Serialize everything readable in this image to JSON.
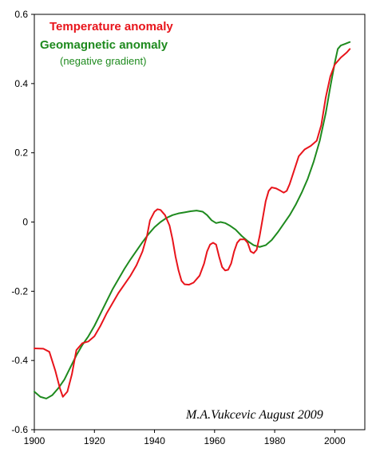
{
  "chart_data": {
    "type": "line",
    "title": "",
    "xlabel": "",
    "ylabel": "",
    "xlim": [
      1900,
      2010
    ],
    "ylim": [
      -0.6,
      0.6
    ],
    "grid": false,
    "legend_position": "top-left",
    "x_ticks": [
      "1900",
      "1920",
      "1940",
      "1960",
      "1980",
      "2000"
    ],
    "y_ticks": [
      "0.6",
      "0.4",
      "0.2",
      "0",
      "-0.2",
      "-0.4",
      "-0.6"
    ],
    "x_tick_values": [
      1900,
      1920,
      1940,
      1960,
      1980,
      2000
    ],
    "y_tick_values": [
      0.6,
      0.4,
      0.2,
      0,
      -0.2,
      -0.4,
      -0.6
    ],
    "credit": "M.A.Vukcevic  August 2009",
    "series": [
      {
        "name": "Temperature anomaly",
        "color": "#e8141b",
        "points": [
          [
            1900,
            -0.365
          ],
          [
            1903,
            -0.366
          ],
          [
            1905,
            -0.375
          ],
          [
            1907,
            -0.43
          ],
          [
            1908.5,
            -0.48
          ],
          [
            1909.5,
            -0.505
          ],
          [
            1911,
            -0.49
          ],
          [
            1912.5,
            -0.44
          ],
          [
            1914,
            -0.37
          ],
          [
            1916,
            -0.35
          ],
          [
            1918,
            -0.345
          ],
          [
            1920,
            -0.33
          ],
          [
            1922,
            -0.3
          ],
          [
            1924,
            -0.265
          ],
          [
            1926,
            -0.235
          ],
          [
            1928,
            -0.205
          ],
          [
            1930,
            -0.18
          ],
          [
            1932,
            -0.155
          ],
          [
            1934,
            -0.125
          ],
          [
            1936,
            -0.085
          ],
          [
            1937.5,
            -0.04
          ],
          [
            1938.5,
            0.005
          ],
          [
            1940,
            0.03
          ],
          [
            1941,
            0.037
          ],
          [
            1942,
            0.035
          ],
          [
            1943.5,
            0.02
          ],
          [
            1945,
            -0.01
          ],
          [
            1946,
            -0.05
          ],
          [
            1947,
            -0.1
          ],
          [
            1948,
            -0.14
          ],
          [
            1949,
            -0.17
          ],
          [
            1950,
            -0.18
          ],
          [
            1951.5,
            -0.181
          ],
          [
            1953,
            -0.175
          ],
          [
            1955,
            -0.155
          ],
          [
            1956.5,
            -0.12
          ],
          [
            1957.5,
            -0.085
          ],
          [
            1958.5,
            -0.065
          ],
          [
            1959.5,
            -0.06
          ],
          [
            1960.5,
            -0.065
          ],
          [
            1961.5,
            -0.1
          ],
          [
            1962.5,
            -0.13
          ],
          [
            1963.5,
            -0.14
          ],
          [
            1964.5,
            -0.138
          ],
          [
            1965.5,
            -0.12
          ],
          [
            1966.5,
            -0.085
          ],
          [
            1967.5,
            -0.06
          ],
          [
            1968.5,
            -0.05
          ],
          [
            1970,
            -0.05
          ],
          [
            1971,
            -0.06
          ],
          [
            1972,
            -0.085
          ],
          [
            1973,
            -0.09
          ],
          [
            1974,
            -0.08
          ],
          [
            1975,
            -0.04
          ],
          [
            1976,
            0.01
          ],
          [
            1977,
            0.06
          ],
          [
            1978,
            0.09
          ],
          [
            1979,
            0.1
          ],
          [
            1980.5,
            0.097
          ],
          [
            1982,
            0.09
          ],
          [
            1983,
            0.085
          ],
          [
            1984,
            0.09
          ],
          [
            1985,
            0.11
          ],
          [
            1986.5,
            0.15
          ],
          [
            1988,
            0.19
          ],
          [
            1990,
            0.21
          ],
          [
            1992,
            0.22
          ],
          [
            1994,
            0.235
          ],
          [
            1995.5,
            0.28
          ],
          [
            1997,
            0.36
          ],
          [
            1998.5,
            0.42
          ],
          [
            2000,
            0.455
          ],
          [
            2002,
            0.475
          ],
          [
            2004,
            0.49
          ],
          [
            2005,
            0.5
          ]
        ]
      },
      {
        "name": "Geomagnetic anomaly",
        "subtitle": "(negative gradient)",
        "color": "#1e8a1e",
        "points": [
          [
            1900,
            -0.49
          ],
          [
            1902,
            -0.505
          ],
          [
            1904,
            -0.51
          ],
          [
            1906,
            -0.5
          ],
          [
            1908,
            -0.48
          ],
          [
            1910,
            -0.455
          ],
          [
            1912,
            -0.42
          ],
          [
            1914,
            -0.385
          ],
          [
            1916,
            -0.355
          ],
          [
            1918,
            -0.33
          ],
          [
            1920,
            -0.3
          ],
          [
            1922,
            -0.265
          ],
          [
            1924,
            -0.23
          ],
          [
            1926,
            -0.195
          ],
          [
            1928,
            -0.165
          ],
          [
            1930,
            -0.135
          ],
          [
            1932,
            -0.108
          ],
          [
            1934,
            -0.083
          ],
          [
            1936,
            -0.058
          ],
          [
            1938,
            -0.035
          ],
          [
            1940,
            -0.015
          ],
          [
            1942,
            0.0
          ],
          [
            1944,
            0.012
          ],
          [
            1946,
            0.02
          ],
          [
            1948,
            0.025
          ],
          [
            1950,
            0.028
          ],
          [
            1952,
            0.031
          ],
          [
            1954,
            0.033
          ],
          [
            1956,
            0.03
          ],
          [
            1957.5,
            0.02
          ],
          [
            1959,
            0.005
          ],
          [
            1960.5,
            -0.003
          ],
          [
            1962,
            0.0
          ],
          [
            1963.5,
            -0.003
          ],
          [
            1965,
            -0.01
          ],
          [
            1967,
            -0.022
          ],
          [
            1969,
            -0.04
          ],
          [
            1971,
            -0.055
          ],
          [
            1973,
            -0.067
          ],
          [
            1975,
            -0.072
          ],
          [
            1977,
            -0.067
          ],
          [
            1979,
            -0.052
          ],
          [
            1981,
            -0.03
          ],
          [
            1983,
            -0.005
          ],
          [
            1985,
            0.02
          ],
          [
            1987,
            0.05
          ],
          [
            1989,
            0.085
          ],
          [
            1991,
            0.125
          ],
          [
            1993,
            0.175
          ],
          [
            1995,
            0.235
          ],
          [
            1997,
            0.315
          ],
          [
            1998.5,
            0.39
          ],
          [
            2000,
            0.46
          ],
          [
            2001,
            0.5
          ],
          [
            2002,
            0.51
          ],
          [
            2003.5,
            0.515
          ],
          [
            2005,
            0.52
          ]
        ]
      }
    ]
  }
}
